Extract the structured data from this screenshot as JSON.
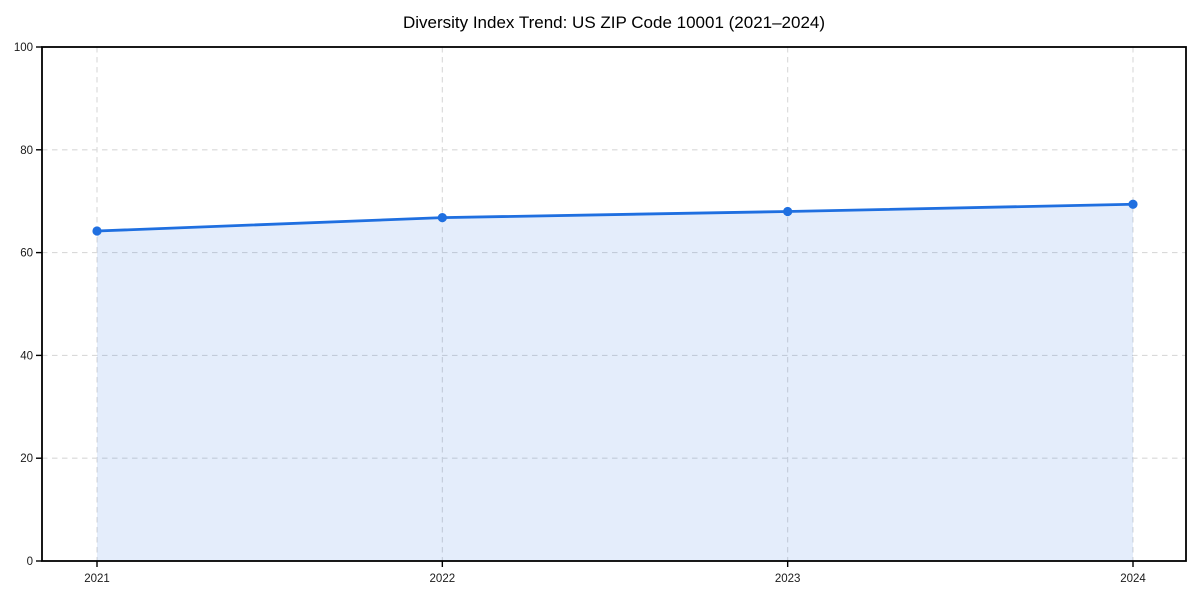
{
  "page": {
    "background": "#ffffff"
  },
  "chart_data": {
    "type": "area",
    "title": "Diversity Index Trend: US ZIP Code 10001 (2021–2024)",
    "categories": [
      "2021",
      "2022",
      "2023",
      "2024"
    ],
    "values": [
      64.2,
      66.8,
      68.0,
      69.4
    ],
    "series": [
      {
        "name": "Diversity Index",
        "values": [
          64.2,
          66.8,
          68.0,
          69.4
        ]
      }
    ],
    "xlabel": "",
    "ylabel": "",
    "ylim": [
      0,
      100
    ],
    "yticks": [
      0,
      20,
      40,
      60,
      80,
      100
    ],
    "grid": "dashed-both-axes",
    "legend_position": "none",
    "colors": {
      "line": "#1f6fe0",
      "marker": "#1f6fe0",
      "area_fill": "rgba(31,111,224,0.12)",
      "gridline": "#d9d9d9",
      "axis_border": "#000000",
      "tick_label": "#1a1a1a",
      "title": "#000000",
      "background": "#ffffff"
    }
  }
}
